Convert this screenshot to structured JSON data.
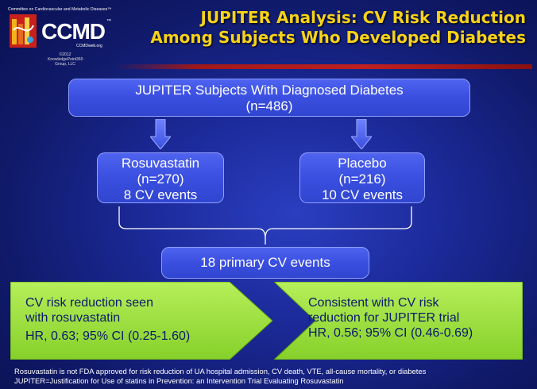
{
  "logo": {
    "tagline": "Committee on Cardiovascular and Metabolic Diseases™",
    "name": "CCMD",
    "tm": "™",
    "url": "CCMDweb.org",
    "copyright_line1": "©2012",
    "copyright_line2": "KnowledgePoint360",
    "copyright_line3": "Group, LLC"
  },
  "title": {
    "line1": "JUPITER Analysis: CV Risk Reduction",
    "line2": "Among Subjects Who Developed Diabetes"
  },
  "top_box": {
    "line1": "JUPITER Subjects With Diagnosed Diabetes",
    "line2": "(n=486)"
  },
  "left_box": {
    "line1": "Rosuvastatin",
    "line2": "(n=270)",
    "line3": "8 CV events"
  },
  "right_box": {
    "line1": "Placebo",
    "line2": "(n=216)",
    "line3": "10 CV events"
  },
  "middle_box": {
    "text": "18 primary CV events"
  },
  "green_left": {
    "line1": "CV risk reduction seen",
    "line2": "with rosuvastatin",
    "line3": "HR, 0.63; 95% CI (0.25-1.60)"
  },
  "green_right": {
    "line1": "Consistent with CV risk",
    "line2": "reduction for JUPITER trial",
    "line3": "HR, 0.56; 95% CI (0.46-0.69)"
  },
  "footnotes": {
    "line1": "Rosuvastatin is not FDA approved for risk reduction of UA hospital admission, CV death, VTE, all-cause mortality, or diabetes",
    "line2": "JUPITER=Justification for Use of statins in Prevention: an Intervention Trial Evaluating Rosuvastatin"
  },
  "colors": {
    "title": "#f6d21a",
    "box_fill": "#3a4fe0",
    "green_fill": "#9be03a",
    "background": "#1c2a9a"
  }
}
